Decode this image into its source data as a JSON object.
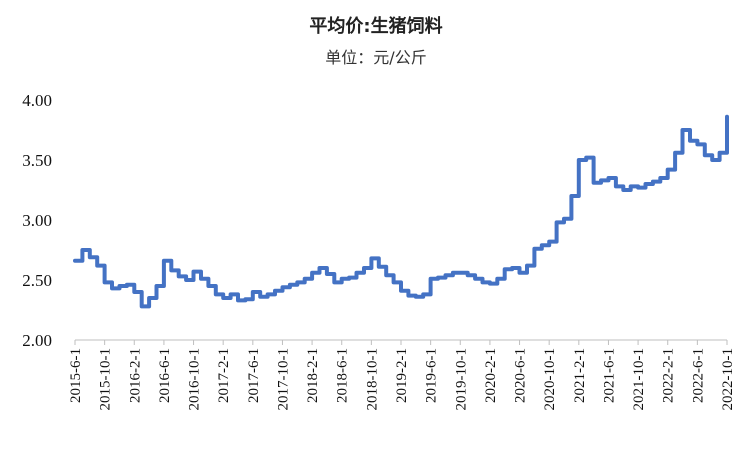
{
  "chart_data": {
    "type": "line",
    "title": "平均价:生猪饲料",
    "subtitle": "单位：元/公斤",
    "ylim": [
      2.0,
      4.0
    ],
    "yticks": [
      "2.00",
      "2.50",
      "3.00",
      "3.50",
      "4.00"
    ],
    "xticks": [
      "2015-6-1",
      "2015-10-1",
      "2016-2-1",
      "2016-6-1",
      "2016-10-1",
      "2017-2-1",
      "2017-6-1",
      "2017-10-1",
      "2018-2-1",
      "2018-6-1",
      "2018-10-1",
      "2019-2-1",
      "2019-6-1",
      "2019-10-1",
      "2020-2-1",
      "2020-6-1",
      "2020-10-1",
      "2021-2-1",
      "2021-6-1",
      "2021-10-1",
      "2022-2-1",
      "2022-6-1",
      "2022-10-1"
    ],
    "grid": false,
    "legend": "none",
    "line_color": "#4472C4",
    "series": [
      {
        "x": [
          "2015-6-1",
          "2015-7-1",
          "2015-8-1",
          "2015-9-1",
          "2015-10-1",
          "2015-11-1",
          "2015-12-1",
          "2016-1-1",
          "2016-2-1",
          "2016-3-1",
          "2016-4-1",
          "2016-5-1",
          "2016-6-1",
          "2016-7-1",
          "2016-8-1",
          "2016-9-1",
          "2016-10-1",
          "2016-11-1",
          "2016-12-1",
          "2017-1-1",
          "2017-2-1",
          "2017-3-1",
          "2017-4-1",
          "2017-5-1",
          "2017-6-1",
          "2017-7-1",
          "2017-8-1",
          "2017-9-1",
          "2017-10-1",
          "2017-11-1",
          "2017-12-1",
          "2018-1-1",
          "2018-2-1",
          "2018-3-1",
          "2018-4-1",
          "2018-5-1",
          "2018-6-1",
          "2018-7-1",
          "2018-8-1",
          "2018-9-1",
          "2018-10-1",
          "2018-11-1",
          "2018-12-1",
          "2019-1-1",
          "2019-2-1",
          "2019-3-1",
          "2019-4-1",
          "2019-5-1",
          "2019-6-1",
          "2019-7-1",
          "2019-8-1",
          "2019-9-1",
          "2019-10-1",
          "2019-11-1",
          "2019-12-1",
          "2020-1-1",
          "2020-2-1",
          "2020-3-1",
          "2020-4-1",
          "2020-5-1",
          "2020-6-1",
          "2020-7-1",
          "2020-8-1",
          "2020-9-1",
          "2020-10-1",
          "2020-11-1",
          "2020-12-1",
          "2021-1-1",
          "2021-2-1",
          "2021-3-1",
          "2021-4-1",
          "2021-5-1",
          "2021-6-1",
          "2021-7-1",
          "2021-8-1",
          "2021-9-1",
          "2021-10-1",
          "2021-11-1",
          "2021-12-1",
          "2022-1-1",
          "2022-2-1",
          "2022-3-1",
          "2022-4-1",
          "2022-5-1",
          "2022-6-1",
          "2022-7-1",
          "2022-8-1",
          "2022-9-1",
          "2022-10-1"
        ],
        "values": [
          2.66,
          2.75,
          2.69,
          2.62,
          2.48,
          2.43,
          2.45,
          2.46,
          2.4,
          2.28,
          2.35,
          2.45,
          2.66,
          2.58,
          2.53,
          2.5,
          2.57,
          2.51,
          2.45,
          2.38,
          2.35,
          2.38,
          2.33,
          2.34,
          2.4,
          2.36,
          2.38,
          2.41,
          2.44,
          2.46,
          2.48,
          2.51,
          2.56,
          2.6,
          2.55,
          2.48,
          2.51,
          2.52,
          2.56,
          2.6,
          2.68,
          2.61,
          2.54,
          2.48,
          2.41,
          2.37,
          2.36,
          2.38,
          2.51,
          2.52,
          2.54,
          2.56,
          2.56,
          2.54,
          2.51,
          2.48,
          2.47,
          2.51,
          2.59,
          2.6,
          2.56,
          2.62,
          2.76,
          2.79,
          2.82,
          2.98,
          3.01,
          3.2,
          3.5,
          3.52,
          3.31,
          3.33,
          3.35,
          3.28,
          3.25,
          3.28,
          3.27,
          3.3,
          3.32,
          3.35,
          3.42,
          3.56,
          3.75,
          3.66,
          3.63,
          3.54,
          3.5,
          3.56,
          3.86
        ]
      }
    ]
  }
}
